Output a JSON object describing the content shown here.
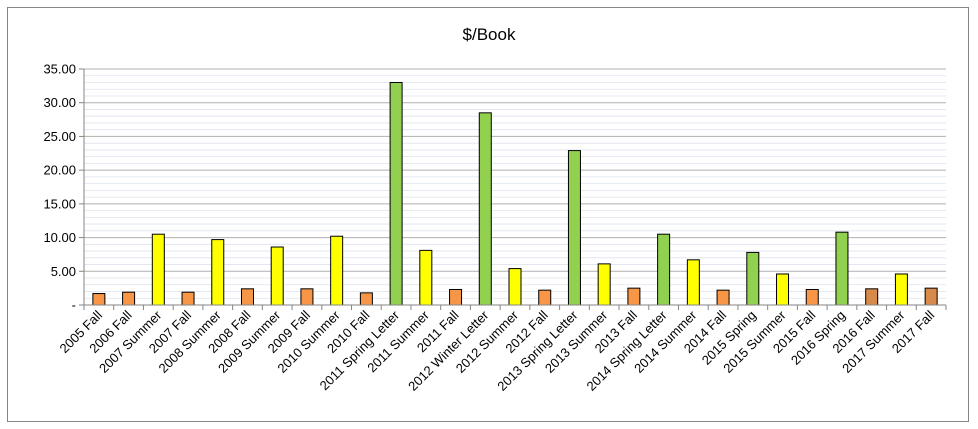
{
  "chart_data": {
    "type": "bar",
    "title": "$/Book",
    "xlabel": "",
    "ylabel": "",
    "ylim": [
      0,
      35
    ],
    "grid": true,
    "legend": "none",
    "y_ticks": [
      "-",
      "5.00",
      "10.00",
      "15.00",
      "20.00",
      "25.00",
      "30.00",
      "35.00"
    ],
    "categories": [
      "2005 Fall",
      "2006 Fall",
      "2007 Summer",
      "2007 Fall",
      "2008 Summer",
      "2008 Fall",
      "2009 Summer",
      "2009 Fall",
      "2010 Summer",
      "2010 Fall",
      "2011 Spring Letter",
      "2011 Summer",
      "2011 Fall",
      "2012 Winter Letter",
      "2012 Summer",
      "2012 Fall",
      "2013 Spring Letter",
      "2013 Summer",
      "2013 Fall",
      "2014 Spring Letter",
      "2014 Summer",
      "2014 Fall",
      "2015 Spring",
      "2015 Summer",
      "2015 Fall",
      "2016 Spring",
      "2016 Fall",
      "2017 Summer",
      "2017 Fall"
    ],
    "values": [
      1.7,
      1.9,
      10.5,
      1.9,
      9.7,
      2.4,
      8.6,
      2.4,
      10.2,
      1.8,
      33.0,
      8.1,
      2.3,
      28.5,
      5.4,
      2.2,
      22.9,
      6.1,
      2.5,
      10.5,
      6.7,
      2.2,
      7.8,
      4.6,
      2.3,
      10.8,
      2.4,
      4.6,
      2.5
    ],
    "bar_colors": [
      "#f79646",
      "#f79646",
      "#ffff00",
      "#f79646",
      "#ffff00",
      "#f79646",
      "#ffff00",
      "#f79646",
      "#ffff00",
      "#f79646",
      "#92d050",
      "#ffff00",
      "#f79646",
      "#92d050",
      "#ffff00",
      "#f79646",
      "#92d050",
      "#ffff00",
      "#f79646",
      "#92d050",
      "#ffff00",
      "#f79646",
      "#92d050",
      "#ffff00",
      "#f79646",
      "#92d050",
      "#d88a4a",
      "#ffff00",
      "#d88a4a"
    ]
  }
}
